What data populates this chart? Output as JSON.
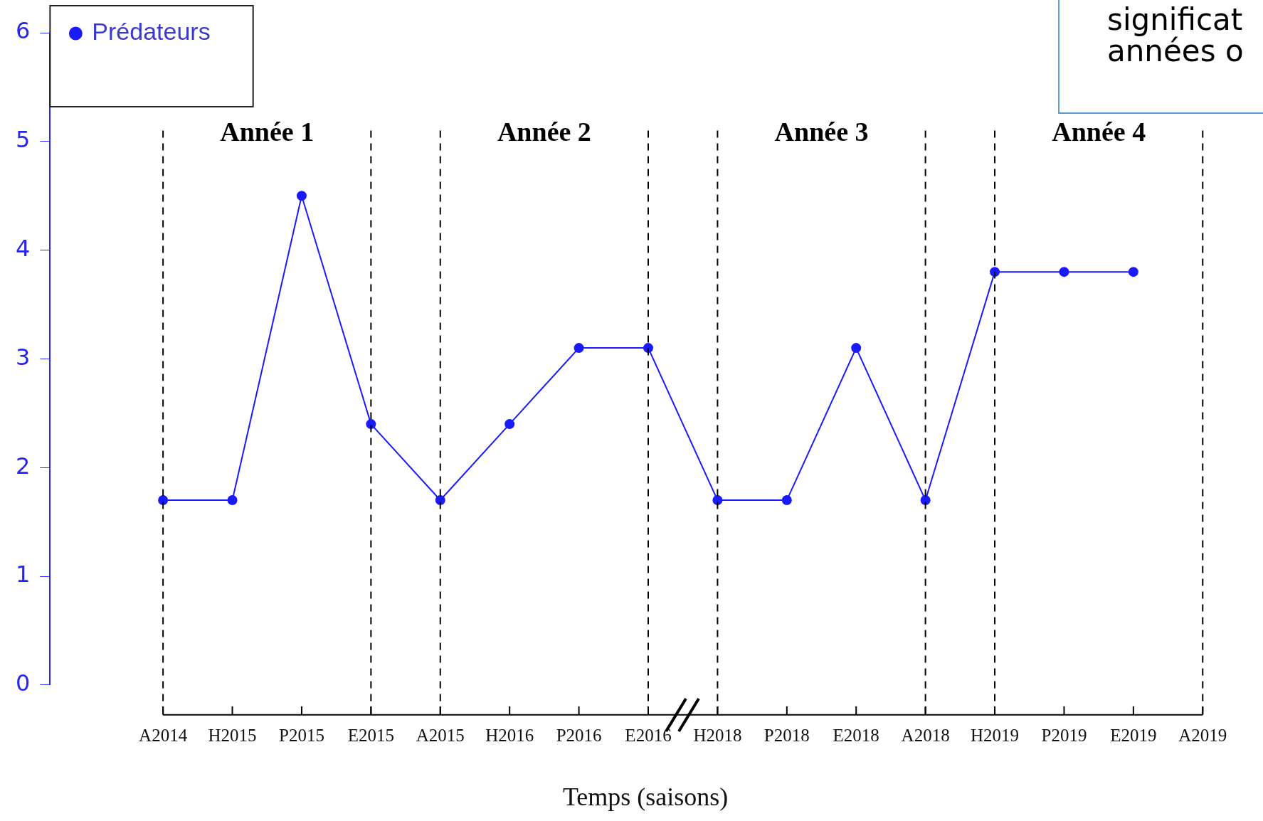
{
  "chart_data": {
    "type": "line",
    "xlabel": "Temps (saisons)",
    "categories": [
      "A2014",
      "H2015",
      "P2015",
      "E2015",
      "A2015",
      "H2016",
      "P2016",
      "E2016",
      "H2018",
      "P2018",
      "E2018",
      "A2018",
      "H2019",
      "P2019",
      "E2019",
      "A2019"
    ],
    "series": [
      {
        "name": "Prédateurs",
        "color": "#1a1aff",
        "values": [
          1.7,
          1.7,
          4.5,
          2.4,
          1.7,
          2.4,
          3.1,
          3.1,
          1.7,
          1.7,
          3.1,
          1.7,
          3.8,
          3.8,
          3.8,
          null
        ]
      }
    ],
    "ylim": [
      0,
      6
    ],
    "yticks": [
      0,
      1,
      2,
      3,
      4,
      5,
      6
    ],
    "legend": "top left",
    "marker": "circle",
    "line_style": "solid",
    "ref_lines": [
      {
        "axis": "x",
        "value": "A2014",
        "color": "#000000",
        "line_style": "dashed"
      },
      {
        "axis": "x",
        "value": "E2015",
        "color": "#000000",
        "line_style": "dashed"
      },
      {
        "axis": "x",
        "value": "A2015",
        "color": "#000000",
        "line_style": "dashed"
      },
      {
        "axis": "x",
        "value": "E2016",
        "color": "#000000",
        "line_style": "dashed"
      },
      {
        "axis": "x",
        "value": "H2018",
        "color": "#000000",
        "line_style": "dashed"
      },
      {
        "axis": "x",
        "value": "A2018",
        "color": "#000000",
        "line_style": "dashed"
      },
      {
        "axis": "x",
        "value": "H2019",
        "color": "#000000",
        "line_style": "dashed"
      },
      {
        "axis": "x",
        "value": "A2019",
        "color": "#000000",
        "line_style": "dashed"
      }
    ],
    "annotations": [
      "Année 1",
      "Année 2",
      "Année 3",
      "Année 4",
      "significat",
      "années o"
    ]
  }
}
